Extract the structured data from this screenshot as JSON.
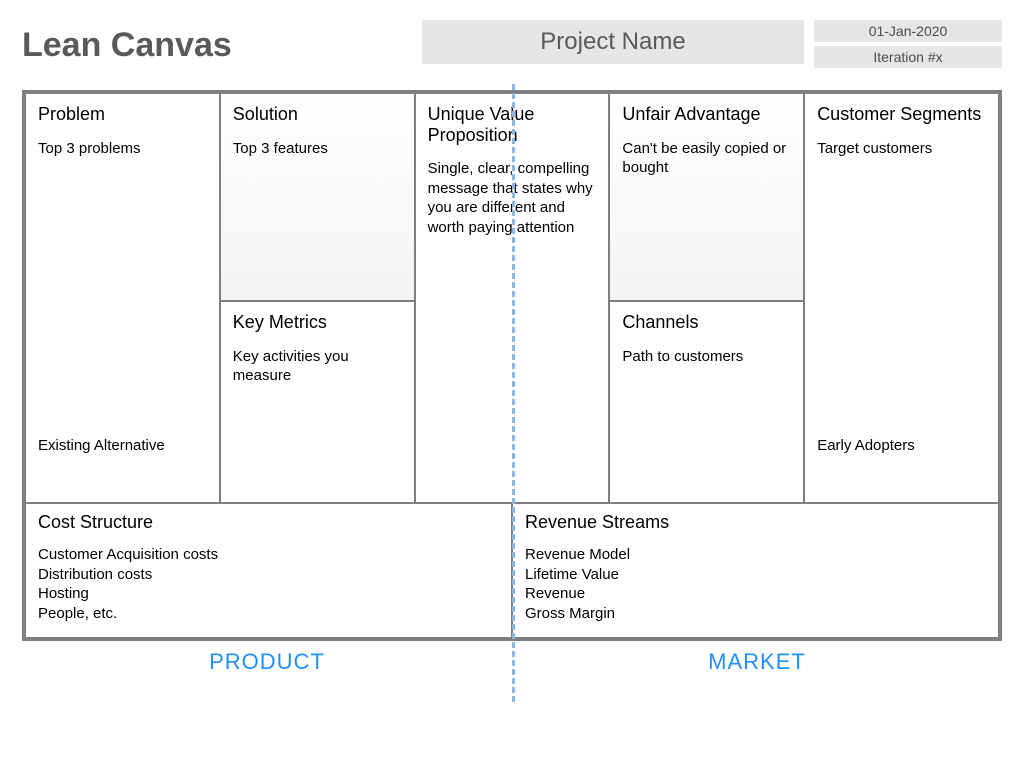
{
  "title": "Lean Canvas",
  "project_name": "Project Name",
  "date": "01-Jan-2020",
  "iteration": "Iteration #x",
  "colors": {
    "border": "#7f7f7f",
    "header_bg": "#e6e6e6",
    "title_text": "#595959",
    "accent_blue": "#1f8fff",
    "dashed_blue": "#8db6e2",
    "cell_gradient_to": "#f4f4f4"
  },
  "cells": {
    "problem": {
      "title": "Problem",
      "desc": "Top 3 problems",
      "footer": "Existing Alternative"
    },
    "solution": {
      "title": "Solution",
      "desc": "Top 3 features"
    },
    "uvp": {
      "title": "Unique Value Proposition",
      "desc": "Single, clear, compelling message that states why you are different and worth paying attention"
    },
    "unfair": {
      "title": "Unfair Advantage",
      "desc": "Can't be easily copied or bought"
    },
    "segments": {
      "title": "Customer Segments",
      "desc": "Target customers",
      "footer": "Early Adopters"
    },
    "metrics": {
      "title": "Key Metrics",
      "desc": "Key activities you measure"
    },
    "channels": {
      "title": "Channels",
      "desc": "Path to customers"
    },
    "cost": {
      "title": "Cost Structure",
      "desc": "Customer Acquisition costs\nDistribution costs\nHosting\nPeople, etc."
    },
    "revenue": {
      "title": "Revenue Streams",
      "desc": "Revenue Model\nLifetime Value\nRevenue\nGross Margin"
    }
  },
  "footer": {
    "left": "PRODUCT",
    "right": "MARKET"
  }
}
